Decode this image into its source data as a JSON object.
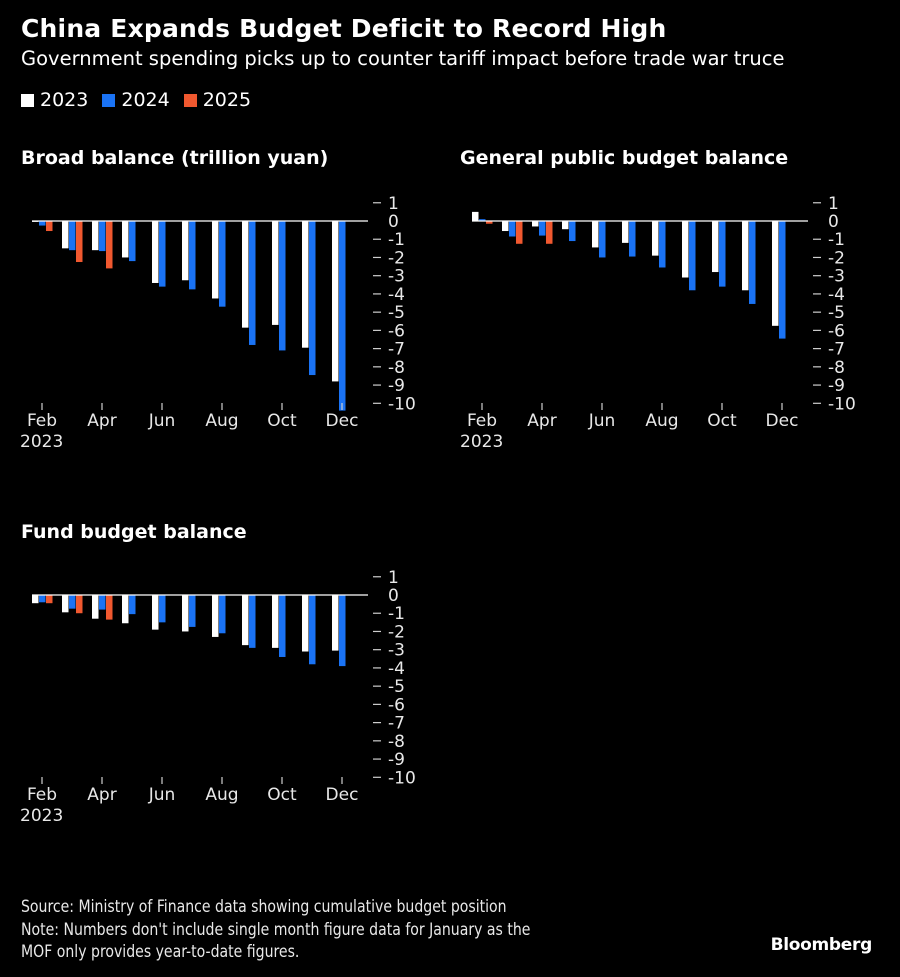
{
  "header": {
    "title": "China Expands Budget Deficit to Record High",
    "subtitle": "Government spending picks up to counter tariff impact before trade war truce"
  },
  "legend": [
    {
      "label": "2023",
      "color": "#FFFFFF"
    },
    {
      "label": "2024",
      "color": "#1A73F5"
    },
    {
      "label": "2025",
      "color": "#F0582F"
    }
  ],
  "chart_data": [
    {
      "type": "bar",
      "title": "Broad balance (trillion yuan)",
      "xlabel": "",
      "ylabel": "",
      "ylim": [
        -10,
        1
      ],
      "yticks": [
        "1",
        "0",
        "-1",
        "-2",
        "-3",
        "-4",
        "-5",
        "-6",
        "-7",
        "-8",
        "-9",
        "-10"
      ],
      "xtick_labels": [
        "Feb",
        "Apr",
        "Jun",
        "Aug",
        "Oct",
        "Dec"
      ],
      "xtick_sublabel": "2023",
      "categories": [
        "Feb",
        "Mar",
        "Apr",
        "May",
        "Jun",
        "Jul",
        "Aug",
        "Sep",
        "Oct",
        "Nov",
        "Dec"
      ],
      "series": [
        {
          "name": "2023",
          "color": "#FFFFFF",
          "values": [
            -0.05,
            -1.5,
            -1.6,
            -2.0,
            -3.4,
            -3.25,
            -4.25,
            -5.85,
            -5.7,
            -6.95,
            -8.8
          ]
        },
        {
          "name": "2024",
          "color": "#1A73F5",
          "values": [
            -0.25,
            -1.6,
            -1.65,
            -2.2,
            -3.6,
            -3.75,
            -4.7,
            -6.8,
            -7.1,
            -8.45,
            -10.4
          ]
        },
        {
          "name": "2025",
          "color": "#F0582F",
          "values": [
            -0.55,
            -2.25,
            -2.6,
            null,
            null,
            null,
            null,
            null,
            null,
            null,
            null
          ]
        }
      ],
      "grid": false,
      "legend": "top-left"
    },
    {
      "type": "bar",
      "title": "General public budget balance",
      "xlabel": "",
      "ylabel": "",
      "ylim": [
        -10,
        1
      ],
      "yticks": [
        "1",
        "0",
        "-1",
        "-2",
        "-3",
        "-4",
        "-5",
        "-6",
        "-7",
        "-8",
        "-9",
        "-10"
      ],
      "xtick_labels": [
        "Feb",
        "Apr",
        "Jun",
        "Aug",
        "Oct",
        "Dec"
      ],
      "xtick_sublabel": "2023",
      "categories": [
        "Feb",
        "Mar",
        "Apr",
        "May",
        "Jun",
        "Jul",
        "Aug",
        "Sep",
        "Oct",
        "Nov",
        "Dec"
      ],
      "series": [
        {
          "name": "2023",
          "color": "#FFFFFF",
          "values": [
            0.5,
            -0.55,
            -0.3,
            -0.45,
            -1.45,
            -1.2,
            -1.9,
            -3.1,
            -2.8,
            -3.8,
            -5.75
          ]
        },
        {
          "name": "2024",
          "color": "#1A73F5",
          "values": [
            0.1,
            -0.85,
            -0.8,
            -1.1,
            -2.0,
            -1.95,
            -2.55,
            -3.8,
            -3.6,
            -4.55,
            -6.45
          ]
        },
        {
          "name": "2025",
          "color": "#F0582F",
          "values": [
            -0.15,
            -1.25,
            -1.25,
            null,
            null,
            null,
            null,
            null,
            null,
            null,
            null
          ]
        }
      ],
      "grid": false,
      "legend": "top-left"
    },
    {
      "type": "bar",
      "title": "Fund budget balance",
      "xlabel": "",
      "ylabel": "",
      "ylim": [
        -10,
        1
      ],
      "yticks": [
        "1",
        "0",
        "-1",
        "-2",
        "-3",
        "-4",
        "-5",
        "-6",
        "-7",
        "-8",
        "-9",
        "-10"
      ],
      "xtick_labels": [
        "Feb",
        "Apr",
        "Jun",
        "Aug",
        "Oct",
        "Dec"
      ],
      "xtick_sublabel": "2023",
      "categories": [
        "Feb",
        "Mar",
        "Apr",
        "May",
        "Jun",
        "Jul",
        "Aug",
        "Sep",
        "Oct",
        "Nov",
        "Dec"
      ],
      "series": [
        {
          "name": "2023",
          "color": "#FFFFFF",
          "values": [
            -0.45,
            -0.95,
            -1.3,
            -1.55,
            -1.9,
            -2.0,
            -2.3,
            -2.75,
            -2.9,
            -3.1,
            -3.05
          ]
        },
        {
          "name": "2024",
          "color": "#1A73F5",
          "values": [
            -0.4,
            -0.75,
            -0.8,
            -1.05,
            -1.5,
            -1.75,
            -2.1,
            -2.9,
            -3.4,
            -3.8,
            -3.9
          ]
        },
        {
          "name": "2025",
          "color": "#F0582F",
          "values": [
            -0.45,
            -1.0,
            -1.35,
            null,
            null,
            null,
            null,
            null,
            null,
            null,
            null
          ]
        }
      ],
      "grid": false,
      "legend": "top-left"
    }
  ],
  "footer": {
    "source": "Source: Ministry of Finance data showing cumulative budget position",
    "note_line1": "Note: Numbers don't include single month figure data for January as the",
    "note_line2": "MOF only provides year-to-date figures.",
    "brand": "Bloomberg"
  }
}
